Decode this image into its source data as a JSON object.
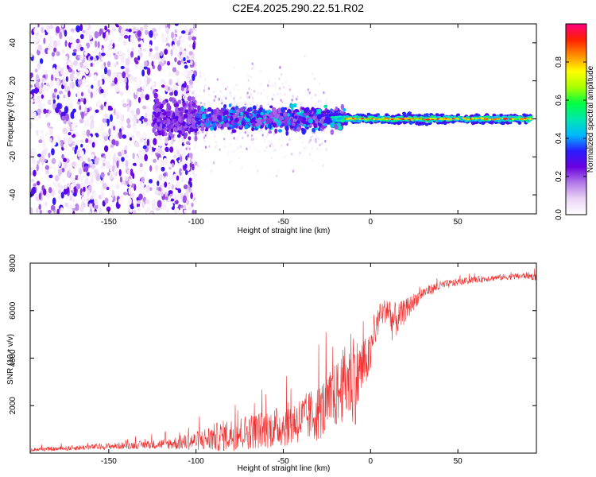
{
  "title": "C2E4.2025.290.22.51.R02",
  "chart_data": [
    {
      "type": "heatmap",
      "title": "C2E4.2025.290.22.51.R02",
      "xlabel": "Height of straight line (km)",
      "ylabel": "Frequency (Hz)",
      "xlim": [
        -195,
        95
      ],
      "ylim": [
        -50,
        50
      ],
      "xticks": [
        -150,
        -100,
        -50,
        0,
        50
      ],
      "yticks": [
        -40,
        -20,
        0,
        20,
        40
      ],
      "colorbar": {
        "label": "Normalized spectral amplitude",
        "range": [
          0,
          1
        ],
        "ticks": [
          0.0,
          0.2,
          0.4,
          0.6,
          0.8
        ],
        "tick_labels": [
          "0.0",
          "0.2",
          "0.4",
          "0.6",
          "0.8"
        ],
        "colors": [
          "#ffffff",
          "#ead4f5",
          "#b27ae8",
          "#6a00e0",
          "#2a1cff",
          "#00b8ff",
          "#00e8b0",
          "#00ff40",
          "#a8ff00",
          "#ffff00",
          "#ff9000",
          "#ff2000",
          "#ff0080"
        ]
      },
      "description_of_field": [
        {
          "x_range": [
            -195,
            -110
          ],
          "band": "scattered",
          "freq_spread": 50,
          "amplitude": 0.15
        },
        {
          "x_range": [
            -110,
            -25
          ],
          "band": "dense",
          "freq_spread": 10,
          "amplitude": 0.3
        },
        {
          "x_range": [
            -25,
            92
          ],
          "band": "narrow",
          "freq_spread": 3,
          "amplitude": 0.55
        }
      ]
    },
    {
      "type": "line",
      "xlabel": "Height of straight line (km)",
      "ylabel": "SNR (10 * v/v)",
      "xlim": [
        -195,
        95
      ],
      "ylim": [
        0,
        8000
      ],
      "xticks": [
        -150,
        -100,
        -50,
        0,
        50
      ],
      "yticks": [
        2000,
        4000,
        6000,
        8000
      ],
      "series": [
        {
          "name": "SNR",
          "color": "#f03030",
          "envelope": {
            "x": [
              -195,
              -180,
              -160,
              -140,
              -120,
              -110,
              -100,
              -90,
              -80,
              -70,
              -60,
              -50,
              -40,
              -30,
              -25,
              -20,
              -15,
              -12,
              -10,
              -8,
              -5,
              -2,
              0,
              2,
              5,
              8,
              10,
              12,
              15,
              20,
              25,
              30,
              40,
              50,
              60,
              70,
              80,
              90,
              95
            ],
            "mean": [
              150,
              180,
              260,
              320,
              380,
              430,
              520,
              650,
              780,
              900,
              1000,
              1150,
              1400,
              1700,
              2000,
              2400,
              2900,
              3200,
              3400,
              3100,
              3600,
              3900,
              4100,
              5000,
              5700,
              6000,
              6100,
              5600,
              5600,
              6000,
              6400,
              6750,
              7050,
              7200,
              7300,
              7380,
              7420,
              7480,
              7400
            ],
            "spread": [
              80,
              90,
              120,
              150,
              200,
              300,
              400,
              600,
              700,
              750,
              800,
              900,
              1000,
              1200,
              1300,
              1400,
              1600,
              2000,
              2400,
              1800,
              1200,
              1000,
              900,
              700,
              600,
              500,
              700,
              900,
              700,
              500,
              350,
              250,
              200,
              150,
              140,
              130,
              130,
              150,
              150
            ]
          }
        }
      ]
    }
  ]
}
